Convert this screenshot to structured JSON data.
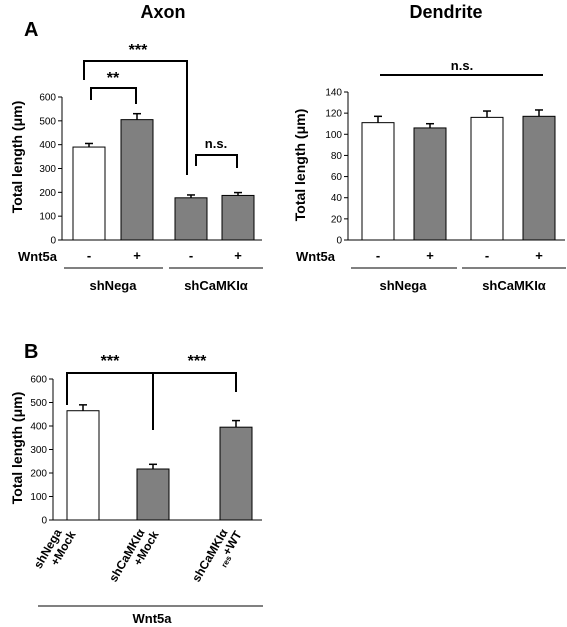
{
  "colors": {
    "white_bar": "#ffffff",
    "grey_bar": "#808080",
    "outline": "#000000"
  },
  "labels": {
    "panel_a": "A",
    "panel_b": "B",
    "axon_title": "Axon",
    "dendrite_title": "Dendrite",
    "ylabel": "Total length (μm)",
    "wnt5a": "Wnt5a",
    "minus": "-",
    "plus": "+",
    "shnega": "shNega",
    "shcamki": "shCaMKIα",
    "b_cat1_line1": "shNega",
    "b_cat1_line2": "+Mock",
    "b_cat2_line1": "shCaMKIα",
    "b_cat2_line2": "+Mock",
    "b_cat3_line1": "shCaMKIα",
    "b_cat3_line2": "+WT",
    "b_cat3_sub": "res",
    "b_group": "Wnt5a",
    "sig3": "***",
    "sig2": "**",
    "ns": "n.s."
  },
  "chart_data": [
    {
      "type": "bar",
      "title": "Axon",
      "ylabel": "Total length (μm)",
      "ylim": [
        0,
        600
      ],
      "yticks": [
        0,
        100,
        200,
        300,
        400,
        500,
        600
      ],
      "categories": [
        "shNega Wnt5a -",
        "shNega Wnt5a +",
        "shCaMKIα Wnt5a -",
        "shCaMKIα Wnt5a +"
      ],
      "values": [
        390,
        505,
        177,
        187
      ],
      "errors": [
        15,
        25,
        12,
        12
      ],
      "fills": [
        "white",
        "grey",
        "grey",
        "grey"
      ],
      "significance": [
        "**",
        "***",
        "n.s."
      ]
    },
    {
      "type": "bar",
      "title": "Dendrite",
      "ylabel": "Total length (μm)",
      "ylim": [
        0,
        140
      ],
      "yticks": [
        0,
        20,
        40,
        60,
        80,
        100,
        120,
        140
      ],
      "categories": [
        "shNega Wnt5a -",
        "shNega Wnt5a +",
        "shCaMKIα Wnt5a -",
        "shCaMKIα Wnt5a +"
      ],
      "values": [
        111,
        106,
        116,
        117
      ],
      "errors": [
        6,
        4,
        6,
        6
      ],
      "fills": [
        "white",
        "grey",
        "white",
        "grey"
      ],
      "significance": [
        "n.s."
      ]
    },
    {
      "type": "bar",
      "ylabel": "Total length (μm)",
      "ylim": [
        0,
        600
      ],
      "yticks": [
        0,
        100,
        200,
        300,
        400,
        500,
        600
      ],
      "categories": [
        "shNega +Mock",
        "shCaMKIα +Mock",
        "shCaMKIα +WTres"
      ],
      "group_label": "Wnt5a",
      "values": [
        465,
        217,
        395
      ],
      "errors": [
        25,
        20,
        28
      ],
      "fills": [
        "white",
        "grey",
        "grey"
      ],
      "significance": [
        "***",
        "***"
      ]
    }
  ]
}
